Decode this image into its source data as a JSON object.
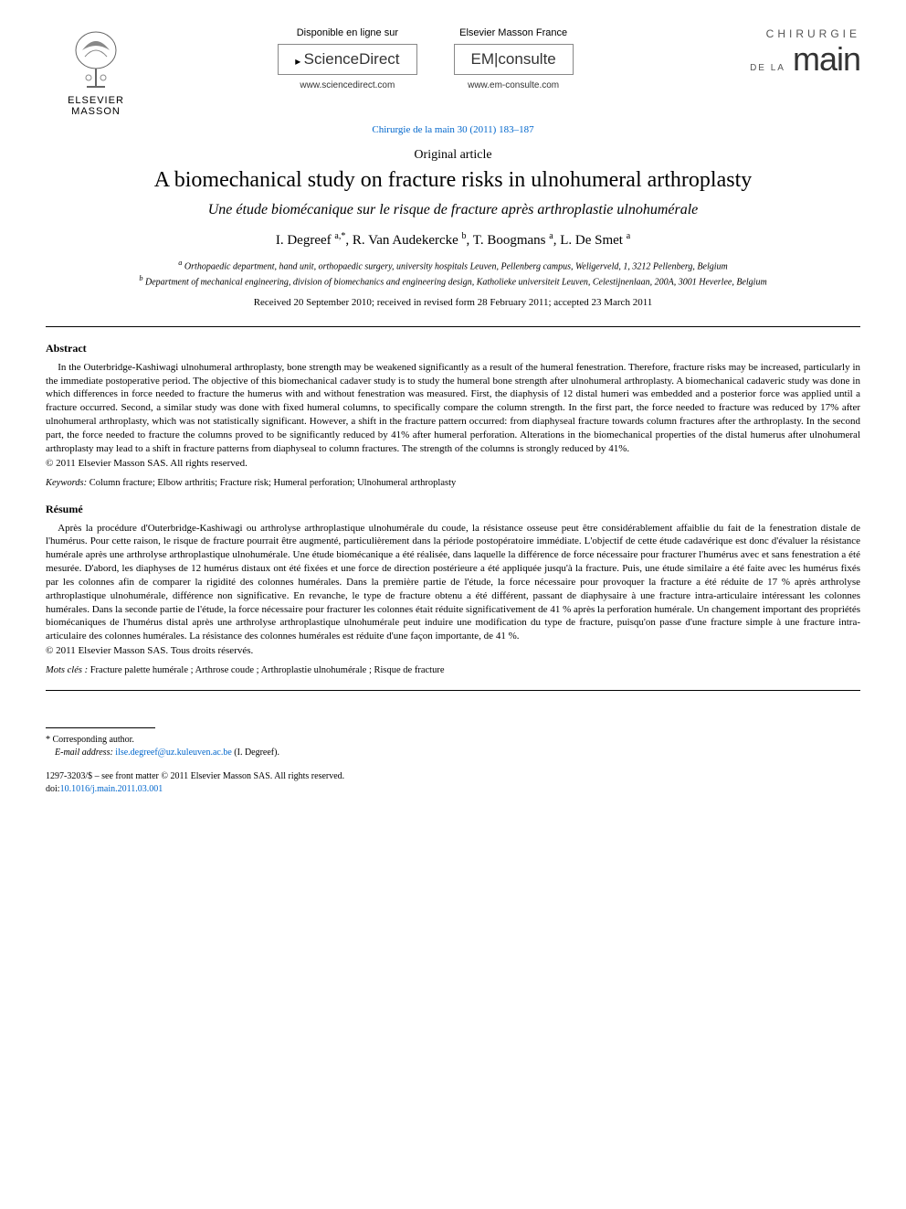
{
  "header": {
    "publisher": "ELSEVIER\nMASSON",
    "online_left": {
      "label": "Disponible en ligne sur",
      "brand_prefix": "",
      "brand": "ScienceDirect",
      "site": "www.sciencedirect.com"
    },
    "online_right": {
      "label": "Elsevier Masson France",
      "brand_prefix": "EM|",
      "brand": "consulte",
      "site": "www.em-consulte.com"
    },
    "journal_logo": {
      "line1": "CHIRURGIE",
      "line2": "DE LA",
      "main": "main"
    },
    "citation": "Chirurgie de la main 30 (2011) 183–187"
  },
  "article": {
    "type": "Original article",
    "title_en": "A biomechanical study on fracture risks in ulnohumeral arthroplasty",
    "title_fr": "Une étude biomécanique sur le risque de fracture après arthroplastie ulnohumérale",
    "authors_html": "I. Degreef <sup>a,*</sup>, R. Van Audekercke <sup>b</sup>, T. Boogmans <sup>a</sup>, L. De Smet <sup>a</sup>",
    "affiliations": {
      "a": "Orthopaedic department, hand unit, orthopaedic surgery, university hospitals Leuven, Pellenberg campus, Weligerveld, 1, 3212 Pellenberg, Belgium",
      "b": "Department of mechanical engineering, division of biomechanics and engineering design, Katholieke universiteit Leuven, Celestijnenlaan, 200A, 3001 Heverlee, Belgium"
    },
    "dates": "Received 20 September 2010; received in revised form 28 February 2011; accepted 23 March 2011"
  },
  "abstract_en": {
    "heading": "Abstract",
    "body": "In the Outerbridge-Kashiwagi ulnohumeral arthroplasty, bone strength may be weakened significantly as a result of the humeral fenestration. Therefore, fracture risks may be increased, particularly in the immediate postoperative period. The objective of this biomechanical cadaver study is to study the humeral bone strength after ulnohumeral arthroplasty. A biomechanical cadaveric study was done in which differences in force needed to fracture the humerus with and without fenestration was measured. First, the diaphysis of 12 distal humeri was embedded and a posterior force was applied until a fracture occurred. Second, a similar study was done with fixed humeral columns, to specifically compare the column strength. In the first part, the force needed to fracture was reduced by 17% after ulnohumeral arthroplasty, which was not statistically significant. However, a shift in the fracture pattern occurred: from diaphyseal fracture towards column fractures after the arthroplasty. In the second part, the force needed to fracture the columns proved to be significantly reduced by 41% after humeral perforation. Alterations in the biomechanical properties of the distal humerus after ulnohumeral arthroplasty may lead to a shift in fracture patterns from diaphyseal to column fractures. The strength of the columns is strongly reduced by 41%.",
    "copyright": "© 2011 Elsevier Masson SAS. All rights reserved.",
    "keywords_label": "Keywords:",
    "keywords": "Column fracture; Elbow arthritis; Fracture risk; Humeral perforation; Ulnohumeral arthroplasty"
  },
  "abstract_fr": {
    "heading": "Résumé",
    "body": "Après la procédure d'Outerbridge-Kashiwagi ou arthrolyse arthroplastique ulnohumérale du coude, la résistance osseuse peut être considérablement affaiblie du fait de la fenestration distale de l'humérus. Pour cette raison, le risque de fracture pourrait être augmenté, particulièrement dans la période postopératoire immédiate. L'objectif de cette étude cadavérique est donc d'évaluer la résistance humérale après une arthrolyse arthroplastique ulnohumérale. Une étude biomécanique a été réalisée, dans laquelle la différence de force nécessaire pour fracturer l'humérus avec et sans fenestration a été mesurée. D'abord, les diaphyses de 12 humérus distaux ont été fixées et une force de direction postérieure a été appliquée jusqu'à la fracture. Puis, une étude similaire a été faite avec les humérus fixés par les colonnes afin de comparer la rigidité des colonnes humérales. Dans la première partie de l'étude, la force nécessaire pour provoquer la fracture a été réduite de 17 % après arthrolyse arthroplastique ulnohumérale, différence non significative. En revanche, le type de fracture obtenu a été différent, passant de diaphysaire à une fracture intra-articulaire intéressant les colonnes humérales. Dans la seconde partie de l'étude, la force nécessaire pour fracturer les colonnes était réduite significativement de 41 % après la perforation humérale. Un changement important des propriétés biomécaniques de l'humérus distal après une arthrolyse arthroplastique ulnohumérale peut induire une modification du type de fracture, puisqu'on passe d'une fracture simple à une fracture intra-articulaire des colonnes humérales. La résistance des colonnes humérales est réduite d'une façon importante, de 41 %.",
    "copyright": "© 2011 Elsevier Masson SAS. Tous droits réservés.",
    "keywords_label": "Mots clés :",
    "keywords": "Fracture palette humérale ; Arthrose coude ; Arthroplastie ulnohumérale ; Risque de fracture"
  },
  "footer": {
    "corresponding": "* Corresponding author.",
    "email_label": "E-mail address:",
    "email": "ilse.degreef@uz.kuleuven.ac.be",
    "email_person": "(I. Degreef).",
    "front_matter": "1297-3203/$ – see front matter © 2011 Elsevier Masson SAS. All rights reserved.",
    "doi_label": "doi:",
    "doi": "10.1016/j.main.2011.03.001"
  },
  "colors": {
    "link": "#0066cc",
    "text": "#000000",
    "muted": "#555555",
    "background": "#ffffff"
  }
}
